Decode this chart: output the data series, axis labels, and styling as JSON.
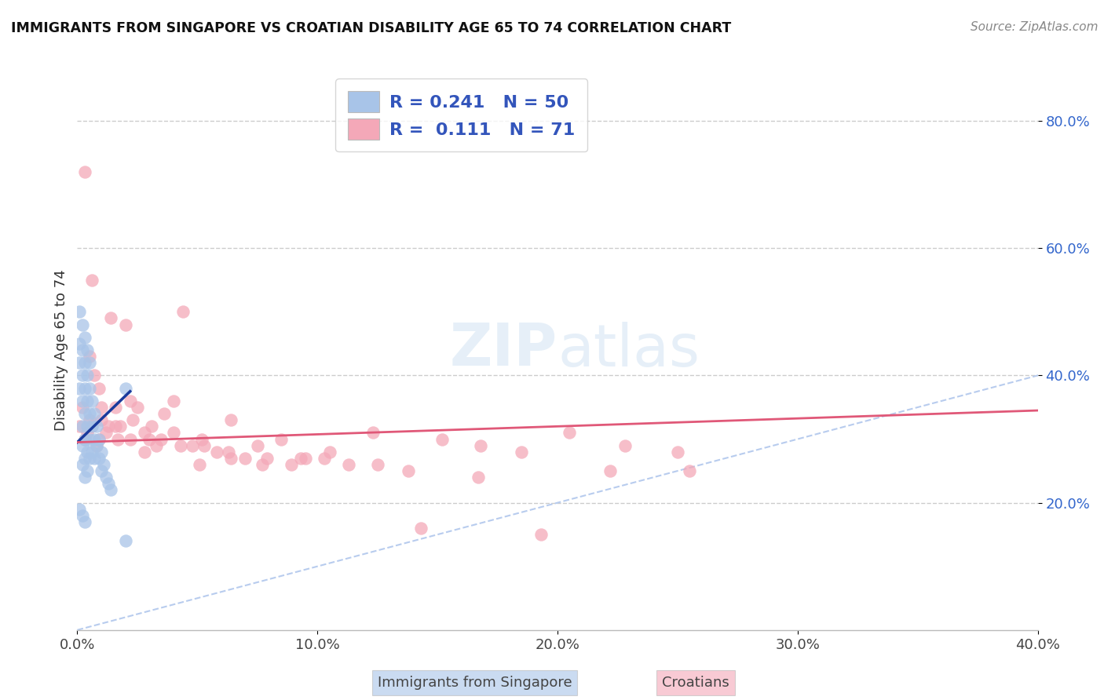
{
  "title": "IMMIGRANTS FROM SINGAPORE VS CROATIAN DISABILITY AGE 65 TO 74 CORRELATION CHART",
  "source": "Source: ZipAtlas.com",
  "ylabel": "Disability Age 65 to 74",
  "xlim": [
    0.0,
    0.4
  ],
  "ylim": [
    0.0,
    0.88
  ],
  "xtick_vals": [
    0.0,
    0.1,
    0.2,
    0.3,
    0.4
  ],
  "xtick_labels": [
    "0.0%",
    "10.0%",
    "20.0%",
    "30.0%",
    "40.0%"
  ],
  "ytick_vals_right": [
    0.2,
    0.4,
    0.6,
    0.8
  ],
  "ytick_labels_right": [
    "20.0%",
    "40.0%",
    "60.0%",
    "80.0%"
  ],
  "grid_color": "#cccccc",
  "background_color": "#ffffff",
  "series1_color": "#a8c4e8",
  "series2_color": "#f4a8b8",
  "series1_label": "Immigrants from Singapore",
  "series2_label": "Croatians",
  "R1": "0.241",
  "N1": "50",
  "R2": "0.111",
  "N2": "71",
  "legend_text_color": "#3355bb",
  "trendline1_color": "#1a3a9c",
  "trendline2_color": "#e05878",
  "diag_line_color": "#b8ccee",
  "series1_x": [
    0.001,
    0.001,
    0.001,
    0.002,
    0.002,
    0.002,
    0.002,
    0.002,
    0.002,
    0.003,
    0.003,
    0.003,
    0.003,
    0.003,
    0.003,
    0.004,
    0.004,
    0.004,
    0.004,
    0.004,
    0.005,
    0.005,
    0.005,
    0.005,
    0.006,
    0.006,
    0.006,
    0.007,
    0.007,
    0.007,
    0.008,
    0.008,
    0.009,
    0.009,
    0.01,
    0.01,
    0.011,
    0.012,
    0.013,
    0.014,
    0.001,
    0.002,
    0.003,
    0.004,
    0.005,
    0.001,
    0.002,
    0.003,
    0.02,
    0.02
  ],
  "series1_y": [
    0.45,
    0.42,
    0.38,
    0.44,
    0.4,
    0.36,
    0.32,
    0.29,
    0.26,
    0.42,
    0.38,
    0.34,
    0.3,
    0.27,
    0.24,
    0.4,
    0.36,
    0.32,
    0.28,
    0.25,
    0.38,
    0.34,
    0.3,
    0.27,
    0.36,
    0.32,
    0.28,
    0.34,
    0.3,
    0.27,
    0.32,
    0.29,
    0.3,
    0.27,
    0.28,
    0.25,
    0.26,
    0.24,
    0.23,
    0.22,
    0.5,
    0.48,
    0.46,
    0.44,
    0.42,
    0.19,
    0.18,
    0.17,
    0.38,
    0.14
  ],
  "series2_x": [
    0.001,
    0.002,
    0.003,
    0.004,
    0.005,
    0.006,
    0.007,
    0.008,
    0.009,
    0.01,
    0.012,
    0.014,
    0.016,
    0.018,
    0.02,
    0.022,
    0.025,
    0.028,
    0.03,
    0.033,
    0.036,
    0.04,
    0.044,
    0.048,
    0.053,
    0.058,
    0.064,
    0.07,
    0.077,
    0.085,
    0.093,
    0.103,
    0.113,
    0.125,
    0.138,
    0.152,
    0.168,
    0.185,
    0.205,
    0.228,
    0.25,
    0.003,
    0.006,
    0.009,
    0.013,
    0.017,
    0.022,
    0.028,
    0.035,
    0.043,
    0.052,
    0.063,
    0.075,
    0.089,
    0.105,
    0.123,
    0.143,
    0.167,
    0.193,
    0.222,
    0.255,
    0.005,
    0.01,
    0.016,
    0.023,
    0.031,
    0.04,
    0.051,
    0.064,
    0.079,
    0.095
  ],
  "series2_y": [
    0.32,
    0.35,
    0.72,
    0.31,
    0.33,
    0.55,
    0.4,
    0.29,
    0.38,
    0.33,
    0.31,
    0.49,
    0.35,
    0.32,
    0.48,
    0.36,
    0.35,
    0.28,
    0.3,
    0.29,
    0.34,
    0.36,
    0.5,
    0.29,
    0.29,
    0.28,
    0.33,
    0.27,
    0.26,
    0.3,
    0.27,
    0.27,
    0.26,
    0.26,
    0.25,
    0.3,
    0.29,
    0.28,
    0.31,
    0.29,
    0.28,
    0.3,
    0.32,
    0.3,
    0.32,
    0.3,
    0.3,
    0.31,
    0.3,
    0.29,
    0.3,
    0.28,
    0.29,
    0.26,
    0.28,
    0.31,
    0.16,
    0.24,
    0.15,
    0.25,
    0.25,
    0.43,
    0.35,
    0.32,
    0.33,
    0.32,
    0.31,
    0.26,
    0.27,
    0.27,
    0.27
  ],
  "trendline1_x": [
    0.0,
    0.022
  ],
  "trendline1_y_start": 0.295,
  "trendline1_y_end": 0.375,
  "trendline2_x": [
    0.0,
    0.4
  ],
  "trendline2_y_start": 0.295,
  "trendline2_y_end": 0.345
}
